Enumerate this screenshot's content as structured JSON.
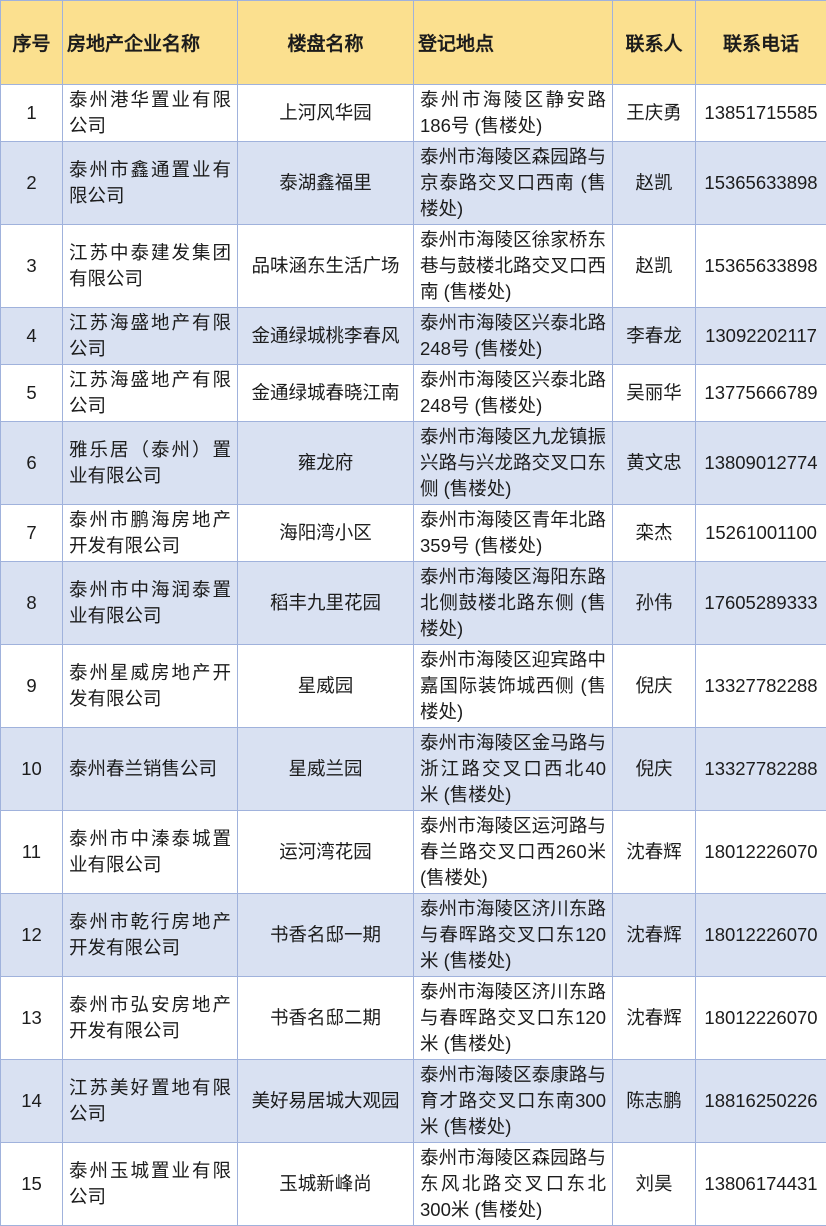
{
  "colors": {
    "header_bg": "#FBE08F",
    "stripe_bg": "#D9E1F2",
    "border": "#A0B2DC",
    "text": "#1c1c1c"
  },
  "table": {
    "columns": [
      {
        "key": "index",
        "label": "序号"
      },
      {
        "key": "company",
        "label": "房地产企业名称"
      },
      {
        "key": "property",
        "label": "楼盘名称"
      },
      {
        "key": "address",
        "label": "登记地点"
      },
      {
        "key": "contact",
        "label": "联系人"
      },
      {
        "key": "phone",
        "label": "联系电话"
      }
    ],
    "rows": [
      {
        "index": "1",
        "company": "泰州港华置业有限公司",
        "property": "上河风华园",
        "address": "泰州市海陵区静安路186号 (售楼处)",
        "contact": "王庆勇",
        "phone": "13851715585"
      },
      {
        "index": "2",
        "company": "泰州市鑫通置业有限公司",
        "property": "泰湖鑫福里",
        "address": "泰州市海陵区森园路与京泰路交叉口西南 (售楼处)",
        "contact": "赵凯",
        "phone": "15365633898"
      },
      {
        "index": "3",
        "company": "江苏中泰建发集团有限公司",
        "property": "品味涵东生活广场",
        "address": "泰州市海陵区徐家桥东巷与鼓楼北路交叉口西南 (售楼处)",
        "contact": "赵凯",
        "phone": "15365633898"
      },
      {
        "index": "4",
        "company": "江苏海盛地产有限公司",
        "property": "金通绿城桃李春风",
        "address": "泰州市海陵区兴泰北路248号 (售楼处)",
        "contact": "李春龙",
        "phone": "13092202117"
      },
      {
        "index": "5",
        "company": "江苏海盛地产有限公司",
        "property": "金通绿城春晓江南",
        "address": "泰州市海陵区兴泰北路248号 (售楼处)",
        "contact": "吴丽华",
        "phone": "13775666789"
      },
      {
        "index": "6",
        "company": "雅乐居（泰州）置业有限公司",
        "property": "雍龙府",
        "address": "泰州市海陵区九龙镇振兴路与兴龙路交叉口东侧 (售楼处)",
        "contact": "黄文忠",
        "phone": "13809012774"
      },
      {
        "index": "7",
        "company": "泰州市鹏海房地产开发有限公司",
        "property": "海阳湾小区",
        "address": "泰州市海陵区青年北路359号 (售楼处)",
        "contact": "栾杰",
        "phone": "15261001100"
      },
      {
        "index": "8",
        "company": "泰州市中海润泰置业有限公司",
        "property": "稻丰九里花园",
        "address": "泰州市海陵区海阳东路北侧鼓楼北路东侧 (售楼处)",
        "contact": "孙伟",
        "phone": "17605289333"
      },
      {
        "index": "9",
        "company": "泰州星威房地产开发有限公司",
        "property": "星威园",
        "address": "泰州市海陵区迎宾路中嘉国际装饰城西侧 (售楼处)",
        "contact": "倪庆",
        "phone": "13327782288"
      },
      {
        "index": "10",
        "company": "泰州春兰销售公司",
        "property": "星威兰园",
        "address": "泰州市海陵区金马路与浙江路交叉口西北40米 (售楼处)",
        "contact": "倪庆",
        "phone": "13327782288"
      },
      {
        "index": "11",
        "company": "泰州市中溱泰城置业有限公司",
        "property": "运河湾花园",
        "address": "泰州市海陵区运河路与春兰路交叉口西260米 (售楼处)",
        "contact": "沈春辉",
        "phone": "18012226070"
      },
      {
        "index": "12",
        "company": "泰州市乾行房地产开发有限公司",
        "property": "书香名邸一期",
        "address": "泰州市海陵区济川东路与春晖路交叉口东120米 (售楼处)",
        "contact": "沈春辉",
        "phone": "18012226070"
      },
      {
        "index": "13",
        "company": "泰州市弘安房地产开发有限公司",
        "property": "书香名邸二期",
        "address": "泰州市海陵区济川东路与春晖路交叉口东120米 (售楼处)",
        "contact": "沈春辉",
        "phone": "18012226070"
      },
      {
        "index": "14",
        "company": "江苏美好置地有限公司",
        "property": "美好易居城大观园",
        "address": "泰州市海陵区泰康路与育才路交叉口东南300米 (售楼处)",
        "contact": "陈志鹏",
        "phone": "18816250226"
      },
      {
        "index": "15",
        "company": "泰州玉城置业有限公司",
        "property": "玉城新峰尚",
        "address": "泰州市海陵区森园路与东风北路交叉口东北300米 (售楼处)",
        "contact": "刘昊",
        "phone": "13806174431"
      }
    ]
  }
}
